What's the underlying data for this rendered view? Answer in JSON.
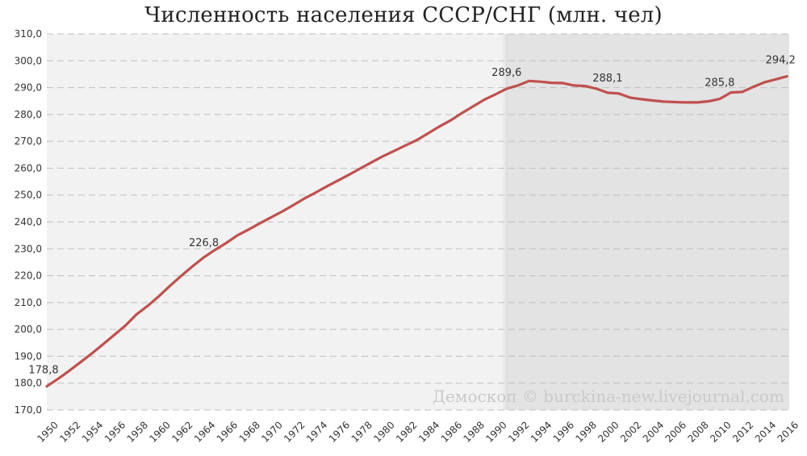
{
  "chart_data": {
    "type": "line",
    "title": "Численность населения СССР/СНГ (млн. чел)",
    "xlabel": "",
    "ylabel": "",
    "ylim": [
      170,
      310
    ],
    "yticks": [
      "170,0",
      "180,0",
      "190,0",
      "200,0",
      "210,0",
      "220,0",
      "230,0",
      "240,0",
      "250,0",
      "260,0",
      "270,0",
      "280,0",
      "290,0",
      "300,0",
      "310,0"
    ],
    "xticks": [
      "1950",
      "1952",
      "1954",
      "1956",
      "1958",
      "1960",
      "1962",
      "1964",
      "1966",
      "1968",
      "1970",
      "1972",
      "1974",
      "1976",
      "1978",
      "1980",
      "1982",
      "1984",
      "1986",
      "1988",
      "1990",
      "1992",
      "1994",
      "1996",
      "1998",
      "2000",
      "2002",
      "2004",
      "2006",
      "2008",
      "2010",
      "2012",
      "2014",
      "2016"
    ],
    "grid": true,
    "line_color": "#c0504d",
    "shaded_region": {
      "from": 1991,
      "to": 2016.2,
      "color": "#e3e3e3"
    },
    "series": [
      {
        "x": [
          1950,
          1951,
          1952,
          1953,
          1954,
          1955,
          1956,
          1957,
          1958,
          1959,
          1960,
          1961,
          1962,
          1963,
          1964,
          1965,
          1966,
          1967,
          1968,
          1969,
          1970,
          1971,
          1972,
          1973,
          1974,
          1975,
          1976,
          1977,
          1978,
          1979,
          1980,
          1981,
          1982,
          1983,
          1984,
          1985,
          1986,
          1987,
          1988,
          1989,
          1990,
          1991,
          1992,
          1993,
          1994,
          1995,
          1996,
          1997,
          1998,
          1999,
          2000,
          2001,
          2002,
          2003,
          2004,
          2005,
          2006,
          2007,
          2008,
          2009,
          2010,
          2011,
          2012,
          2013,
          2014,
          2015,
          2016
        ],
        "values": [
          178.8,
          181.6,
          184.6,
          187.8,
          191.0,
          194.4,
          197.9,
          201.4,
          205.6,
          208.8,
          212.4,
          216.3,
          220.0,
          223.5,
          226.8,
          229.6,
          232.2,
          235.0,
          237.2,
          239.5,
          241.7,
          243.9,
          246.3,
          248.8,
          251.0,
          253.3,
          255.5,
          257.7,
          260.0,
          262.3,
          264.5,
          266.5,
          268.5,
          270.5,
          273.0,
          275.5,
          277.8,
          280.5,
          283.0,
          285.5,
          287.5,
          289.6,
          290.8,
          292.5,
          292.2,
          291.8,
          291.7,
          290.8,
          290.6,
          289.6,
          288.1,
          287.8,
          286.3,
          285.7,
          285.2,
          284.8,
          284.6,
          284.5,
          284.5,
          284.9,
          285.8,
          288.2,
          288.4,
          290.3,
          292.0,
          293.1,
          294.2
        ]
      }
    ],
    "data_labels": [
      {
        "x": 1950,
        "value": 178.8,
        "text": "178,8"
      },
      {
        "x": 1964,
        "value": 226.8,
        "text": "226,8"
      },
      {
        "x": 1991,
        "value": 289.6,
        "text": "289,6"
      },
      {
        "x": 2000,
        "value": 288.1,
        "text": "288,1"
      },
      {
        "x": 2010,
        "value": 285.8,
        "text": "285,8"
      },
      {
        "x": 2016,
        "value": 294.2,
        "text": "294,2"
      }
    ],
    "watermark": "Демоскоп © burckina-new.livejournal.com"
  }
}
